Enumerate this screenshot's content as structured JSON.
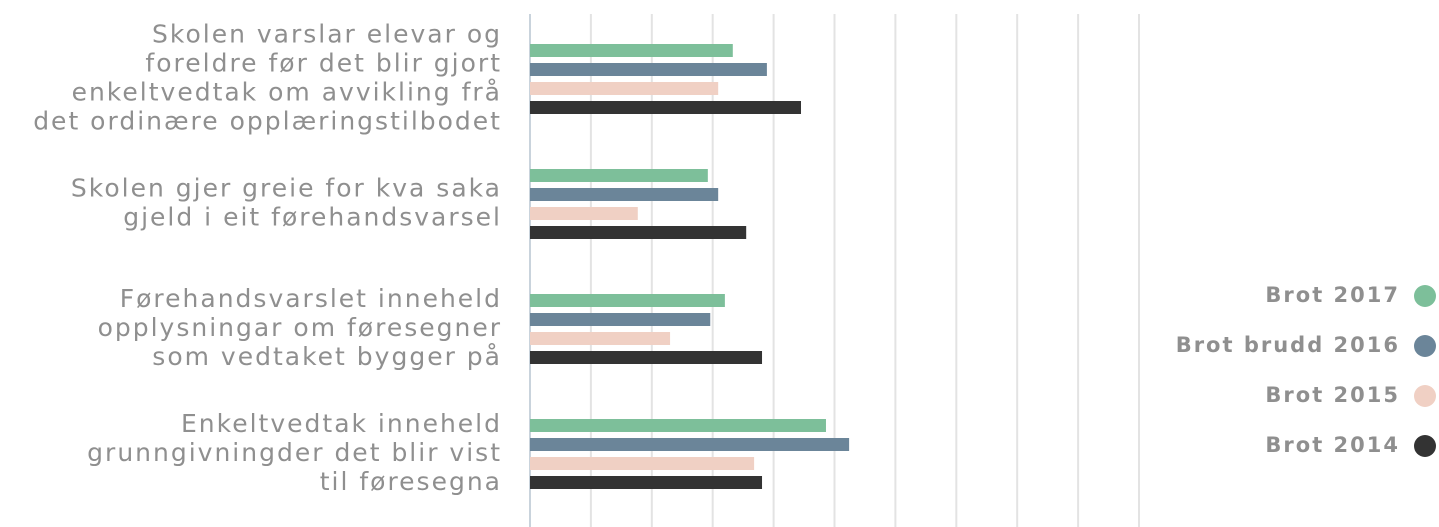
{
  "chart_data": {
    "type": "hbar",
    "categories": [
      [
        "Skolen varslar elevar og",
        "foreldre før det blir gjort",
        "enkeltvedtak om avvikling frå",
        "det ordinære opplæringstilbodet"
      ],
      [
        "Skolen gjer greie for kva saka",
        "gjeld i eit førehandsvarsel"
      ],
      [
        "Førehandsvarslet inneheld",
        "opplysningar om føresegner",
        "som vedtaket bygger på"
      ],
      [
        "Enkeltvedtak inneheld",
        "grunngivningder det blir vist",
        "til føresegna"
      ]
    ],
    "series": [
      {
        "name": "Brot 2017",
        "color": "#7dbf9a",
        "values": [
          33.3,
          29.2,
          32,
          48.6
        ]
      },
      {
        "name": "Brot brudd 2016",
        "color": "#6b8599",
        "values": [
          38.9,
          30.9,
          29.6,
          52.4
        ]
      },
      {
        "name": "Brot 2015",
        "color": "#f0d0c4",
        "values": [
          30.9,
          17.7,
          23,
          36.8
        ]
      },
      {
        "name": "Brot 2014",
        "color": "#333333",
        "values": [
          44.5,
          35.5,
          38.1,
          38.1
        ]
      }
    ],
    "xlim": [
      0,
      100
    ],
    "xticks": [
      0,
      10,
      20,
      30,
      40,
      50,
      60,
      70,
      80,
      90,
      100
    ],
    "grid": true,
    "legend": "right"
  }
}
